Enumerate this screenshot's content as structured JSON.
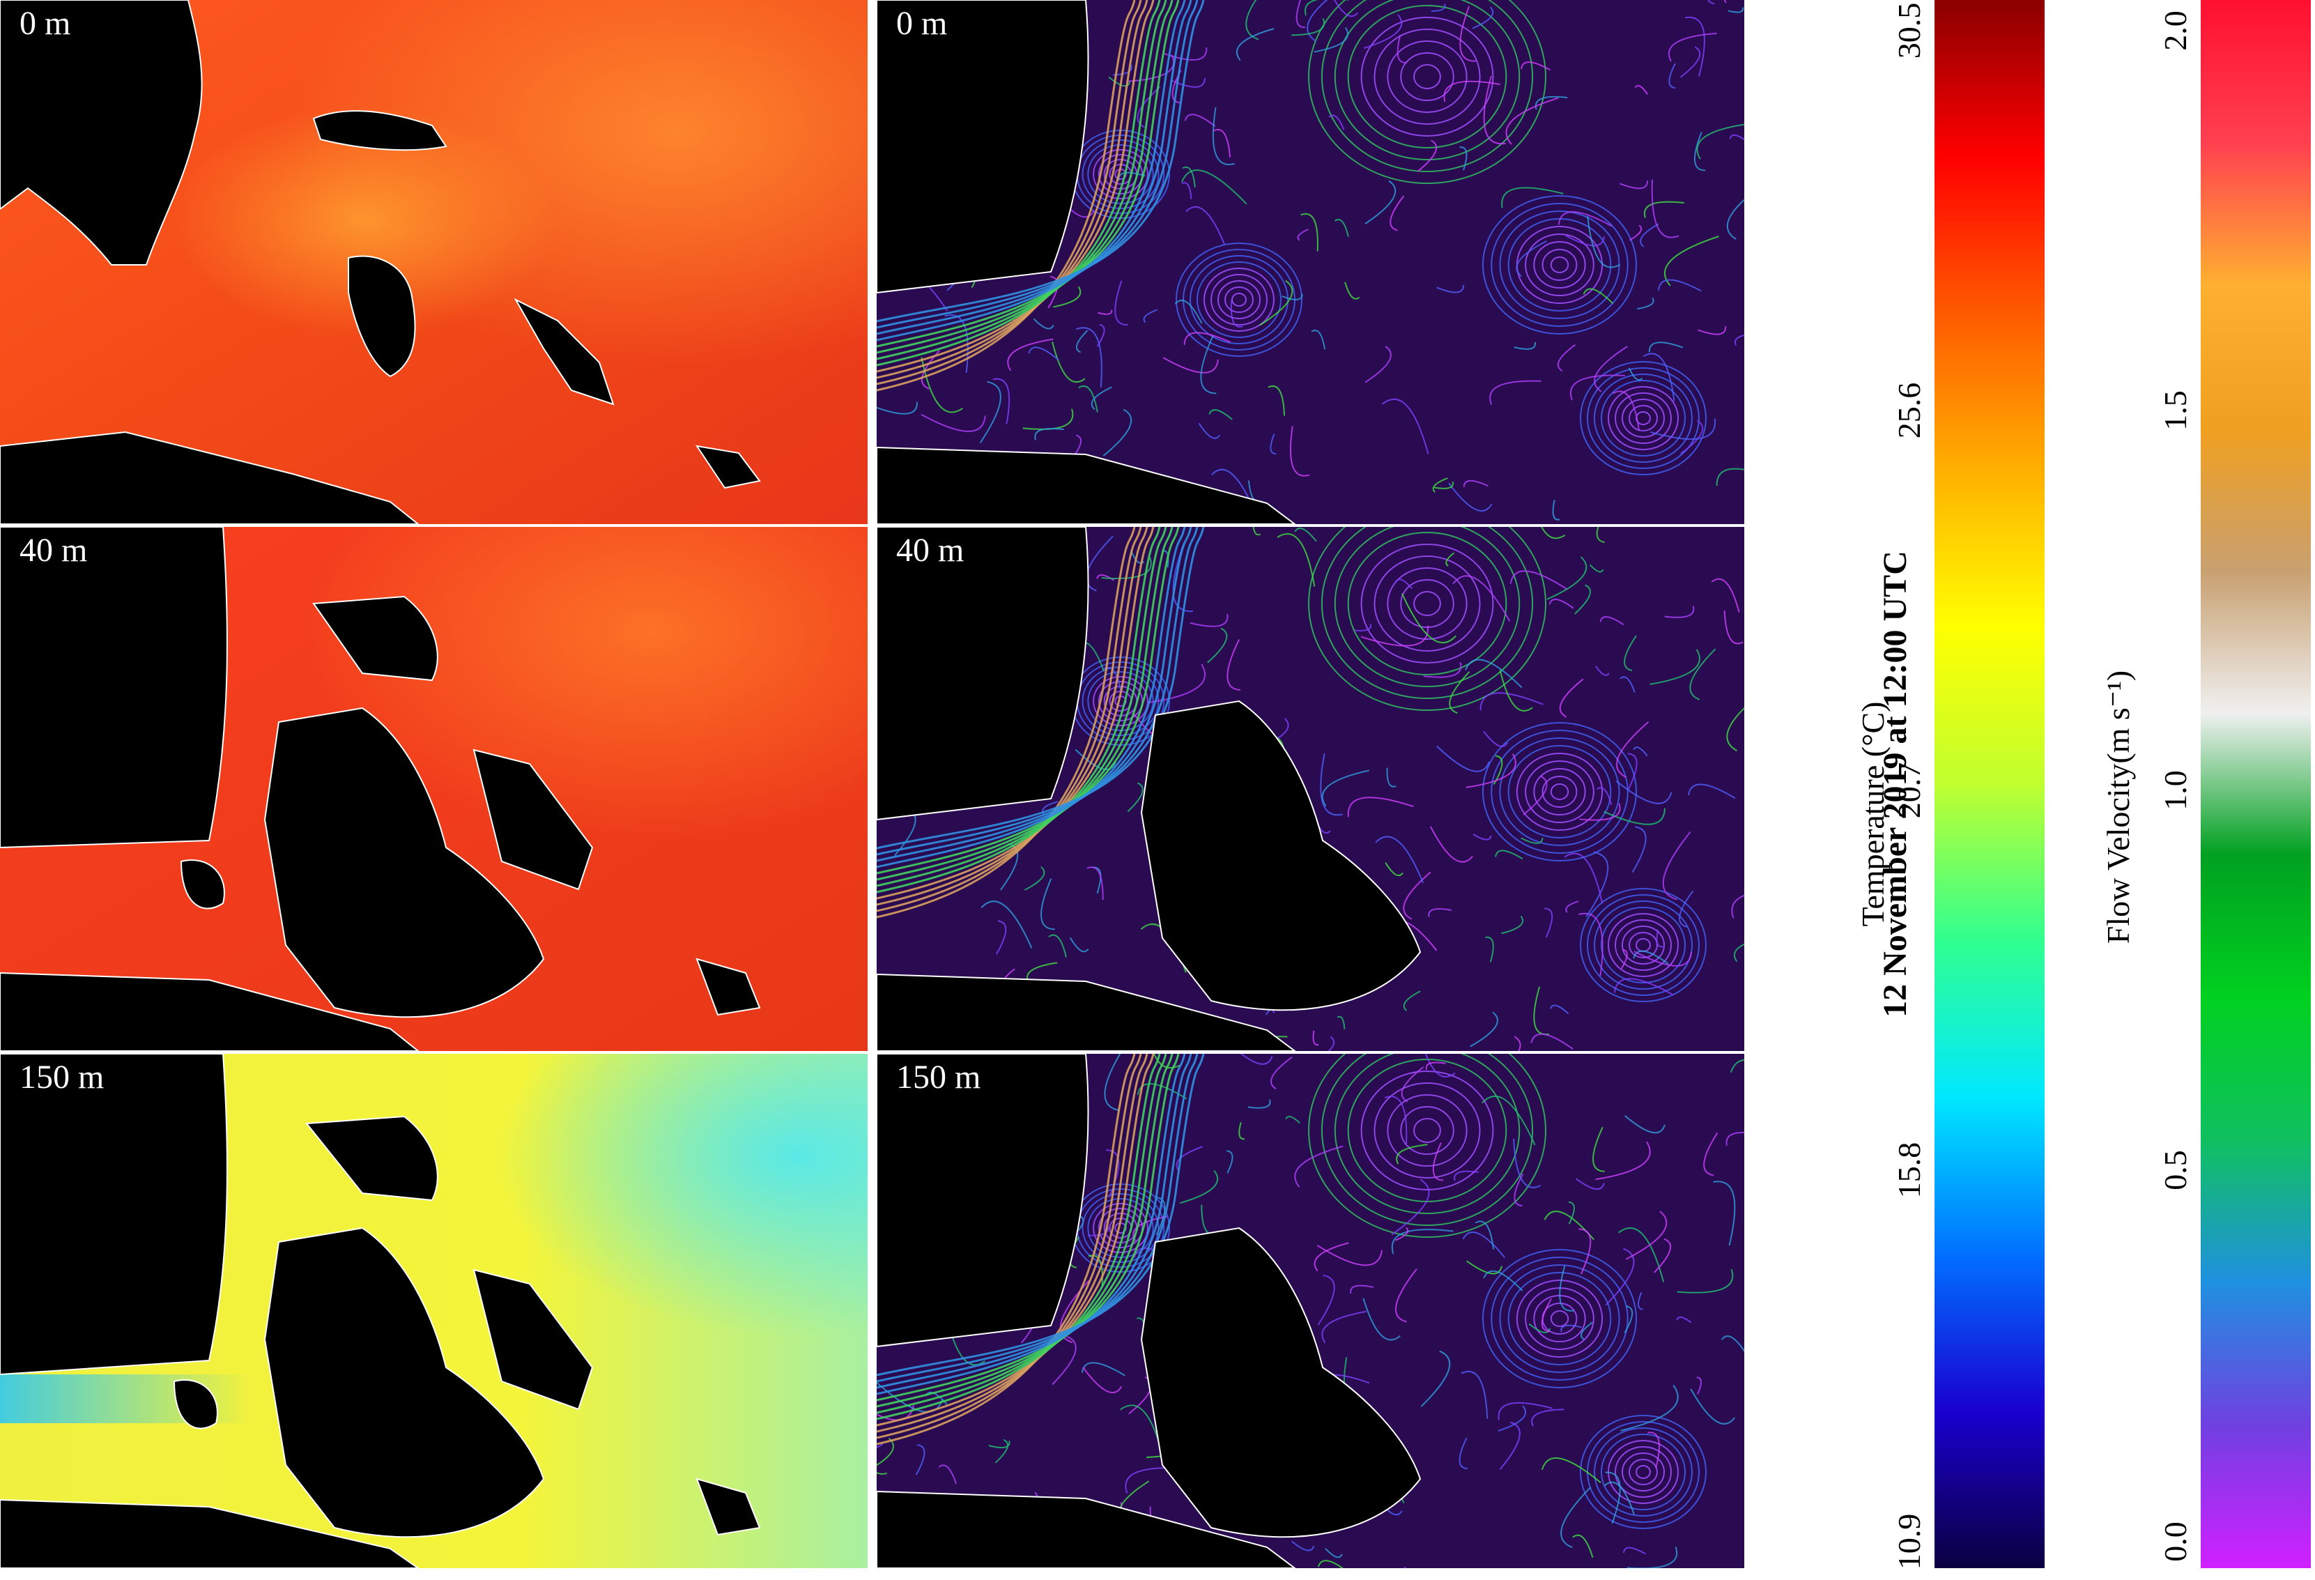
{
  "date_label": "12 November 2019 at 12:00 UTC",
  "depths": [
    "0 m",
    "40 m",
    "150 m"
  ],
  "temperature_colorbar": {
    "label": "Temperature (°C)",
    "ticks": [
      "10.9",
      "15.8",
      "20.7",
      "25.6",
      "30.5"
    ],
    "min": 10.9,
    "max": 30.5,
    "colors": [
      "#0a0040",
      "#1a00d0",
      "#0070ff",
      "#00e8ff",
      "#30ff90",
      "#c0ff30",
      "#ffff00",
      "#ffb000",
      "#ff5a00",
      "#ff0000",
      "#8a0000"
    ]
  },
  "velocity_colorbar": {
    "label": "Flow Velocity(m s⁻¹)",
    "ticks": [
      "0.0",
      "0.5",
      "1.0",
      "1.5",
      "2.0"
    ],
    "min": 0.0,
    "max": 2.0,
    "colors": [
      "#d020ff",
      "#7040e0",
      "#2090e0",
      "#10c060",
      "#00d020",
      "#00a020",
      "#f0f0f0",
      "#c8a070",
      "#f0a020",
      "#ffb030",
      "#ff4050",
      "#ff1030"
    ]
  },
  "panels": {
    "temperature": [
      {
        "depth": "0 m",
        "sea_color": "#f03a18",
        "tint_color": "#ff8a20"
      },
      {
        "depth": "40 m",
        "sea_color": "#f03a18",
        "tint_color": "#ff7a20"
      },
      {
        "depth": "150 m",
        "sea_color": "#f6f23a",
        "tint_color": "#50e8f0"
      }
    ],
    "velocity": [
      {
        "depth": "0 m",
        "line_color": "#9a40ff"
      },
      {
        "depth": "40 m",
        "line_color": "#9a40ff"
      },
      {
        "depth": "150 m",
        "line_color": "#9a40ff"
      }
    ]
  }
}
